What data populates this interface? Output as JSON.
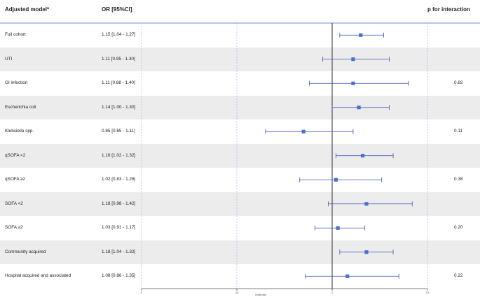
{
  "header": {
    "model_label": "Adjusted model*",
    "or_label": "OR [95%CI]",
    "p_label": "p for interaction"
  },
  "chart_data": {
    "type": "forest",
    "xlabel": "Odds ratio",
    "x_ticks": [
      "0",
      "0.5",
      "1",
      "1.5"
    ],
    "xlim": [
      0,
      1.5
    ],
    "reference_line": 1,
    "rows": [
      {
        "label": "Full cohort",
        "or_text": "1.15 [1.04 - 1.27]",
        "or": 1.15,
        "lo": 1.04,
        "hi": 1.27,
        "p": ""
      },
      {
        "label": "UTI",
        "or_text": "1.11 [0.95 - 1.30]",
        "or": 1.11,
        "lo": 0.95,
        "hi": 1.3,
        "p": ""
      },
      {
        "label": "GI infection",
        "or_text": "1.11 [0.88 - 1.40]",
        "or": 1.11,
        "lo": 0.88,
        "hi": 1.4,
        "p": "0.82"
      },
      {
        "label": "Escherichia coli",
        "or_text": "1.14 [1.00 - 1.30]",
        "or": 1.14,
        "lo": 1.0,
        "hi": 1.3,
        "p": ""
      },
      {
        "label": "Klebsiella spp.",
        "or_text": "0.85 [0.65 - 1.11]",
        "or": 0.85,
        "lo": 0.65,
        "hi": 1.11,
        "p": "0.11"
      },
      {
        "label": "qSOFA <2",
        "or_text": "1.16 [1.02 - 1.32]",
        "or": 1.16,
        "lo": 1.02,
        "hi": 1.32,
        "p": ""
      },
      {
        "label": "qSOFA ≥2",
        "or_text": "1.02 [0.83 - 1.26]",
        "or": 1.02,
        "lo": 0.83,
        "hi": 1.26,
        "p": "0.38"
      },
      {
        "label": "SOFA <2",
        "or_text": "1.18 [0.98 - 1.42]",
        "or": 1.18,
        "lo": 0.98,
        "hi": 1.42,
        "p": ""
      },
      {
        "label": "SOFA ≥2",
        "or_text": "1.03 [0.91 - 1.17]",
        "or": 1.03,
        "lo": 0.91,
        "hi": 1.17,
        "p": "0.20"
      },
      {
        "label": "Community acquired",
        "or_text": "1.18 [1.04 - 1.32]",
        "or": 1.18,
        "lo": 1.04,
        "hi": 1.32,
        "p": ""
      },
      {
        "label": "Hospital acquired and associated",
        "or_text": "1.08 [0.86 - 1.35]",
        "or": 1.08,
        "lo": 0.86,
        "hi": 1.35,
        "p": "0.22"
      }
    ],
    "colors": {
      "marker": "#4a6fd1",
      "ci_line": "#3f4fb5",
      "reference": "#333333",
      "grid": "#9aa6e6",
      "header_rule": "#6c8fd8",
      "shade": "#ececec"
    }
  }
}
